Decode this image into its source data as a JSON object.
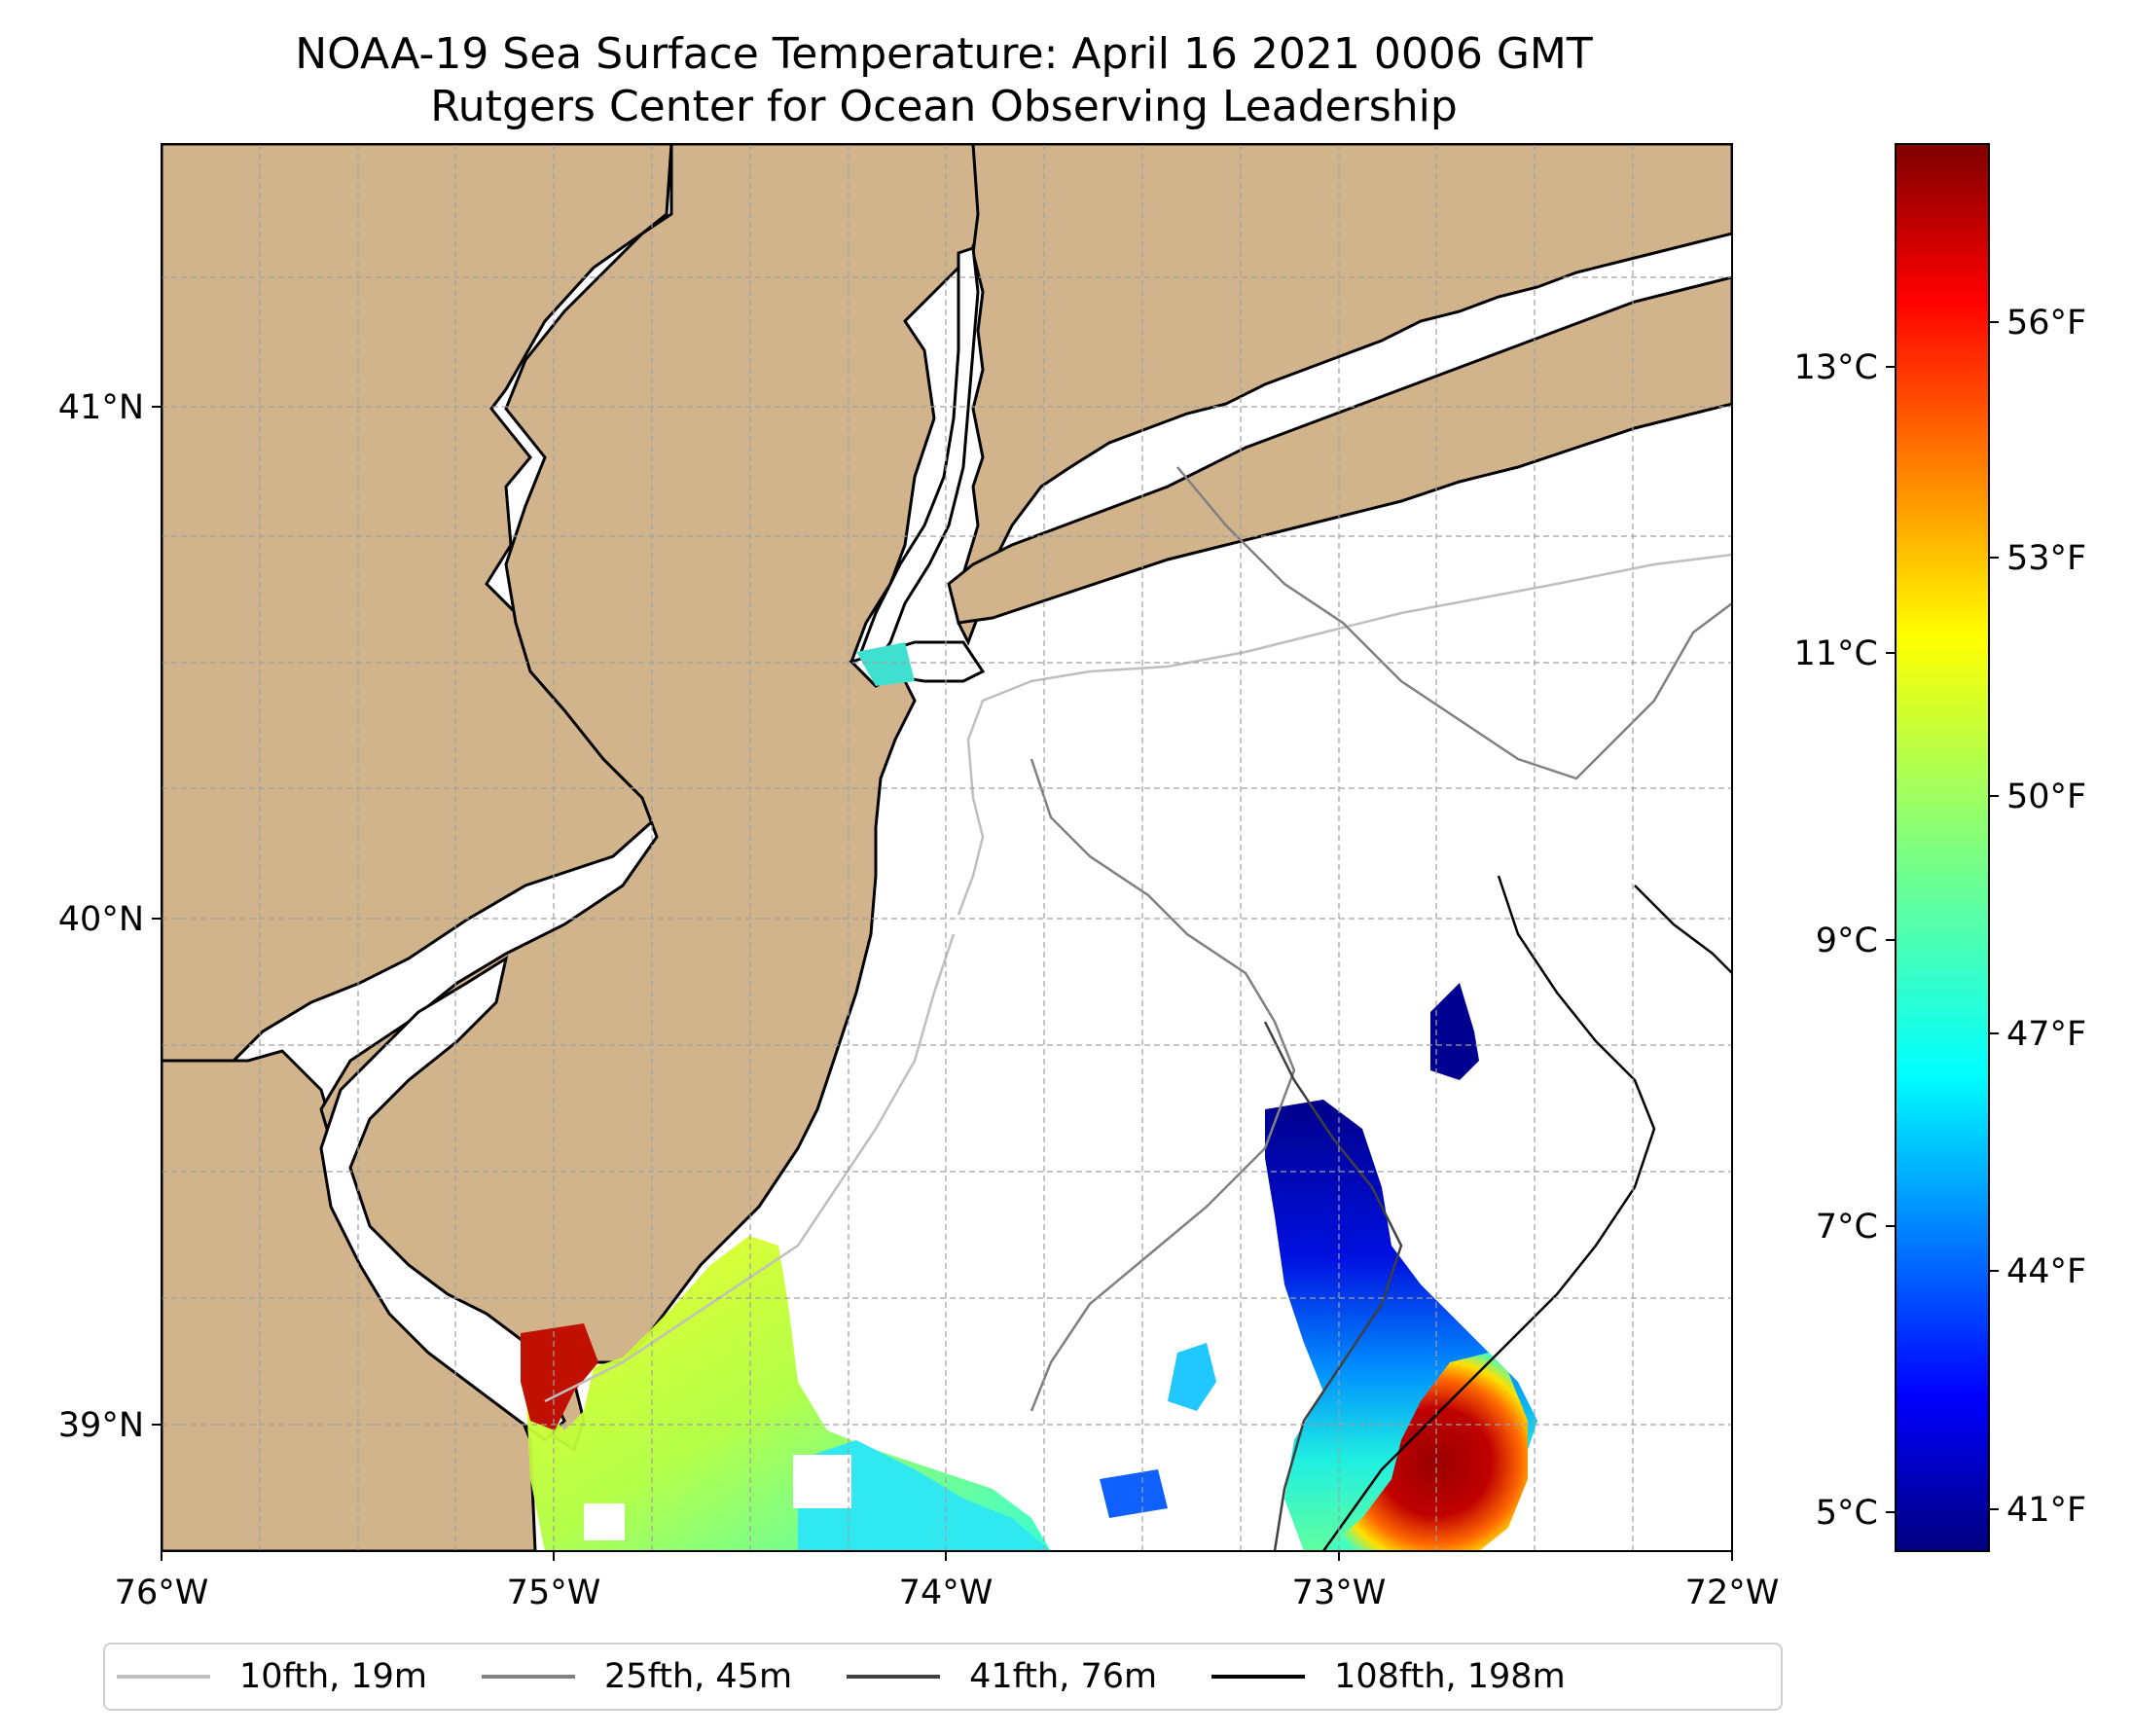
{
  "title": {
    "line1": "NOAA-19 Sea Surface Temperature: April 16 2021 0006 GMT",
    "line2": "Rutgers Center for Ocean Observing Leadership"
  },
  "map": {
    "lat_ticks": [
      "41°N",
      "40°N",
      "39°N"
    ],
    "lon_ticks": [
      "76°W",
      "75°W",
      "74°W",
      "73°W",
      "72°W"
    ],
    "land_color": "#d2b48c",
    "water_color": "#ffffff"
  },
  "colorbar": {
    "celsius_ticks": [
      "13°C",
      "11°C",
      "9°C",
      "7°C",
      "5°C"
    ],
    "fahrenheit_ticks": [
      "56°F",
      "53°F",
      "50°F",
      "47°F",
      "44°F",
      "41°F"
    ],
    "colormap": "jet"
  },
  "legend": {
    "items": [
      {
        "label": "10fth, 19m",
        "color": "#bfbfbf"
      },
      {
        "label": "25fth, 45m",
        "color": "#808080"
      },
      {
        "label": "41fth, 76m",
        "color": "#404040"
      },
      {
        "label": "108fth, 198m",
        "color": "#000000"
      }
    ]
  }
}
